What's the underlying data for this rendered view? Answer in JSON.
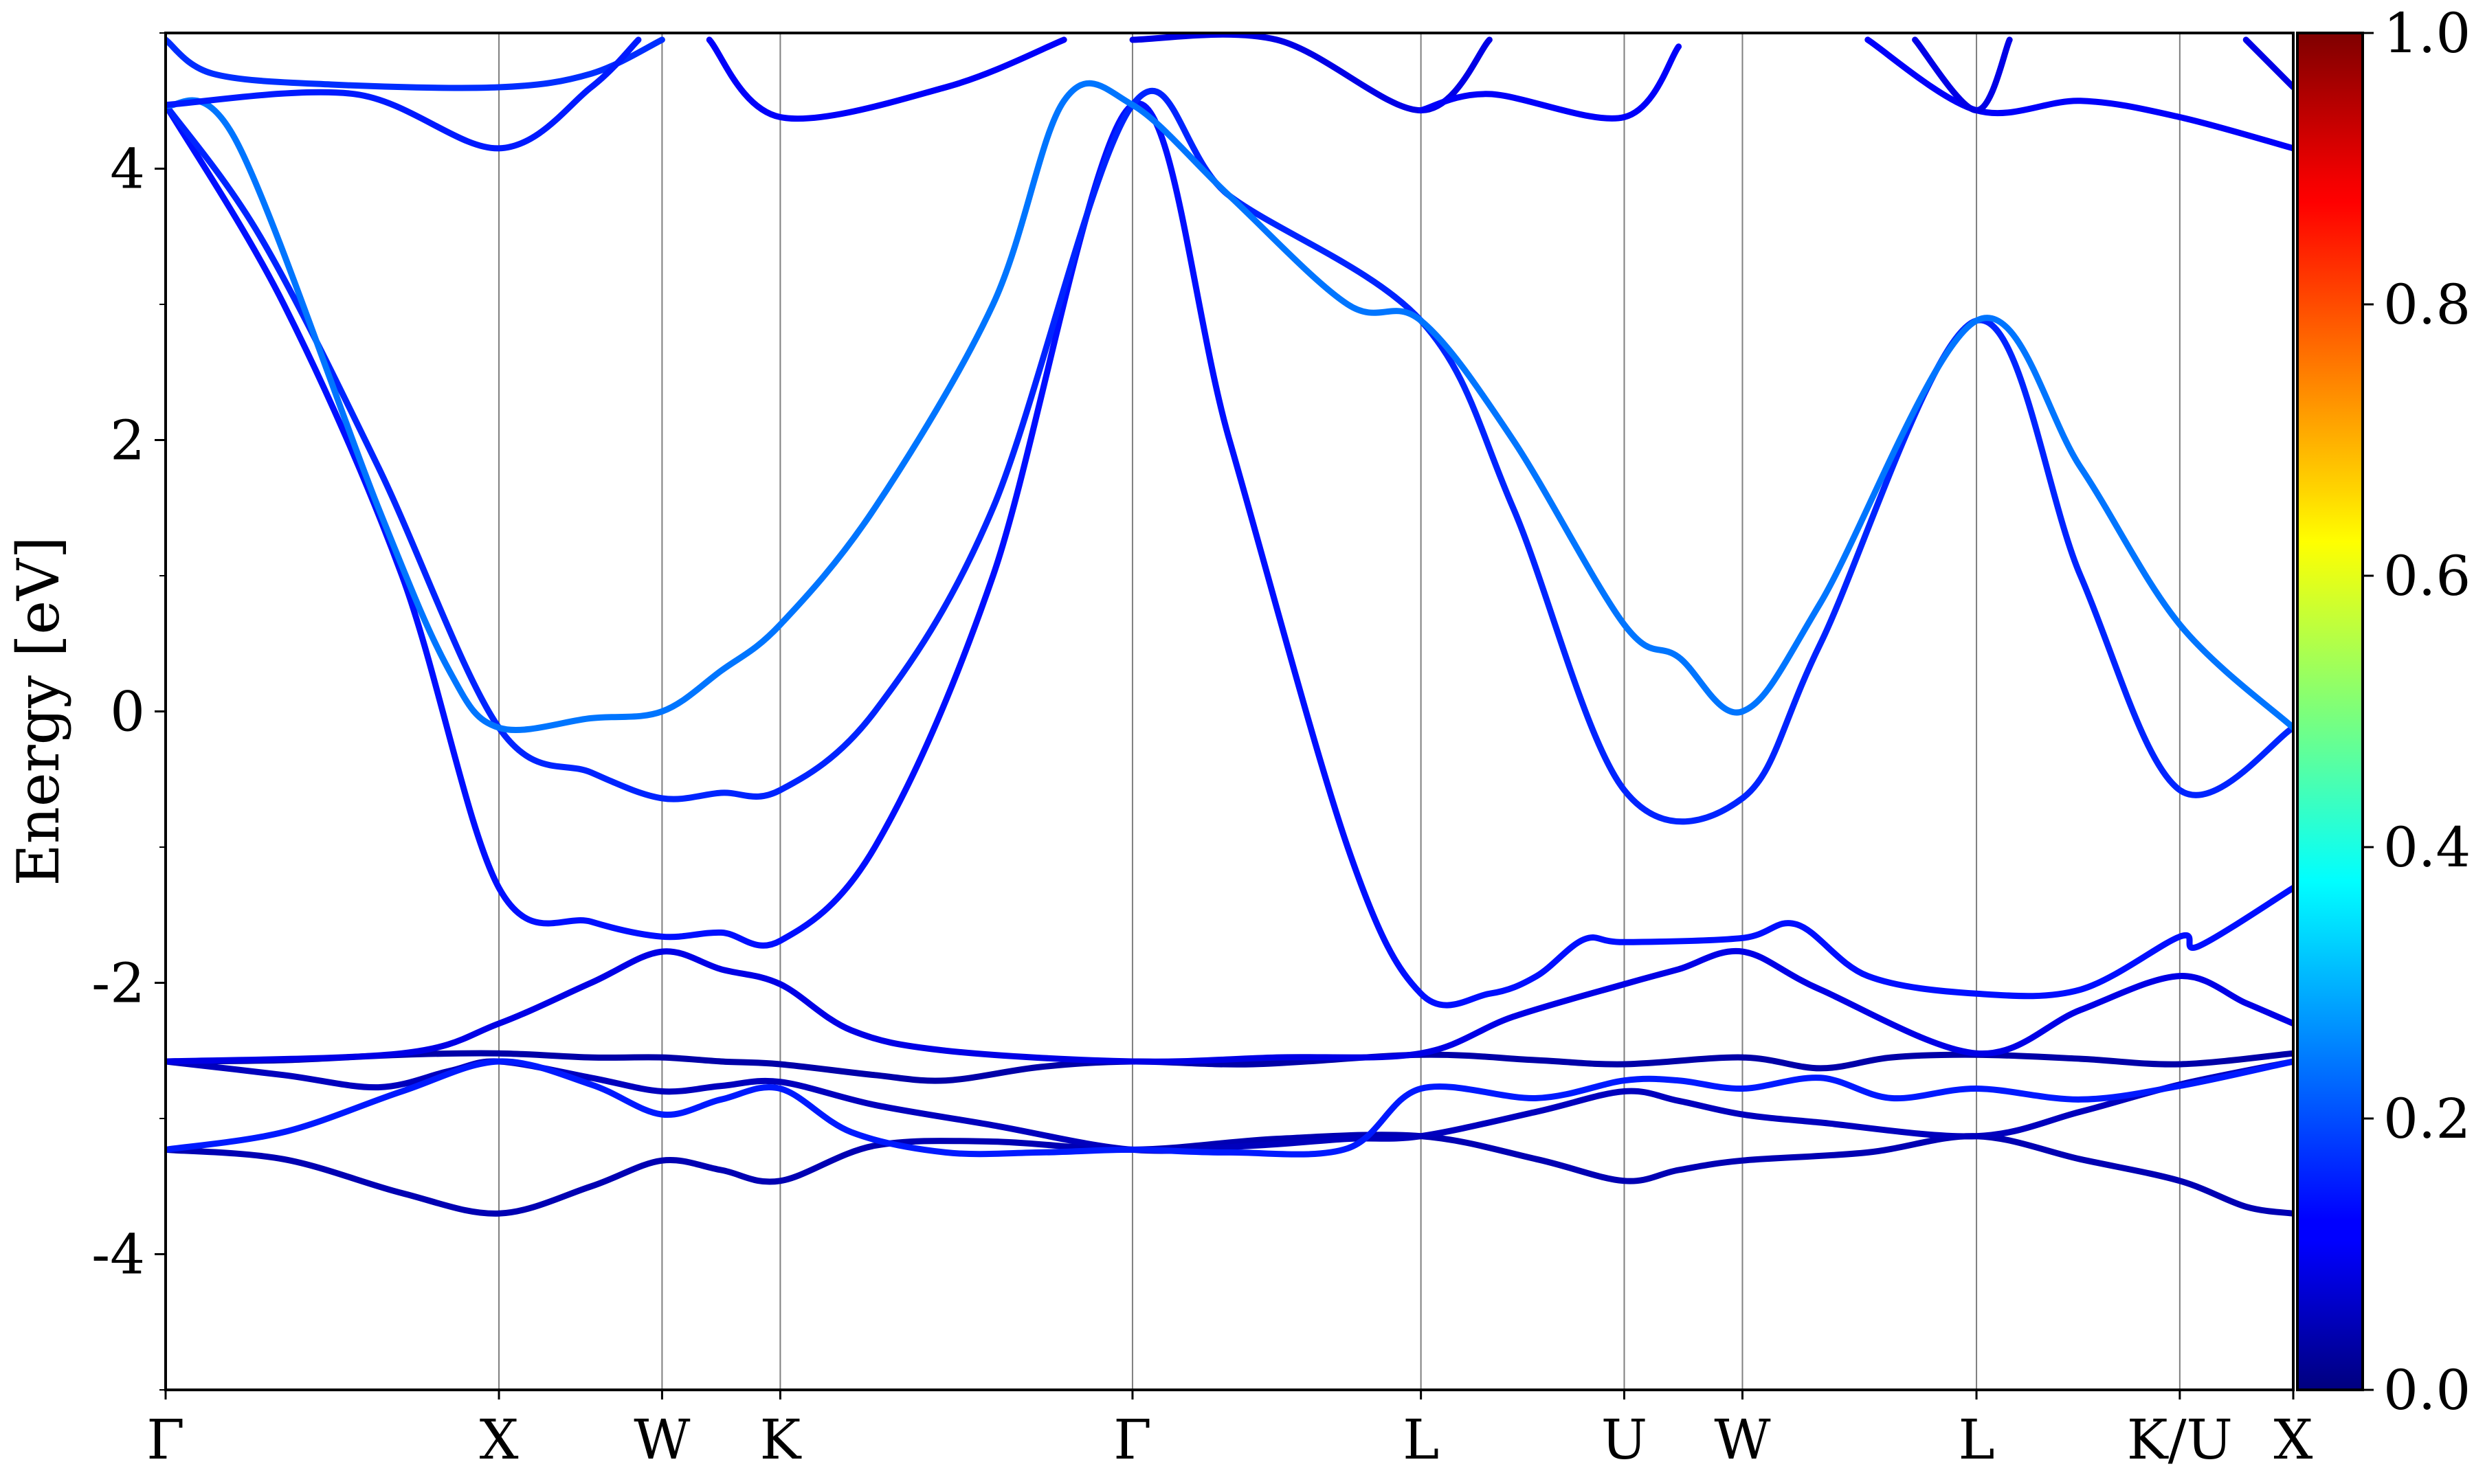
{
  "chart_data": {
    "type": "line",
    "title": "",
    "xlabel": "",
    "ylabel": "Energy [eV]",
    "ylim": [
      -5,
      5
    ],
    "y_ticks": [
      {
        "value": 4,
        "label": "4"
      },
      {
        "value": 2,
        "label": "2"
      },
      {
        "value": 0,
        "label": "0"
      },
      {
        "value": -2,
        "label": "-2"
      },
      {
        "value": -4,
        "label": "-4"
      }
    ],
    "y_minor_ticks": [
      5,
      3,
      1,
      -1,
      -3,
      -5
    ],
    "xlim": [
      0,
      9.0
    ],
    "kpoints": [
      {
        "label": "Γ",
        "x": 0.0
      },
      {
        "label": "X",
        "x": 1.41
      },
      {
        "label": "W",
        "x": 2.1
      },
      {
        "label": "K",
        "x": 2.6
      },
      {
        "label": "Γ",
        "x": 4.09
      },
      {
        "label": "L",
        "x": 5.31
      },
      {
        "label": "U",
        "x": 6.17
      },
      {
        "label": "W",
        "x": 6.67
      },
      {
        "label": "L",
        "x": 7.66
      },
      {
        "label": "K/U",
        "x": 8.52
      },
      {
        "label": "X",
        "x": 9.0
      }
    ],
    "colorbar": {
      "min": 0.0,
      "max": 1.0,
      "colormap": "jet",
      "ticks": [
        {
          "value": 0.0,
          "label": "0.0"
        },
        {
          "value": 0.2,
          "label": "0.2"
        },
        {
          "value": 0.4,
          "label": "0.4"
        },
        {
          "value": 0.6,
          "label": "0.6"
        },
        {
          "value": 0.8,
          "label": "0.8"
        },
        {
          "value": 1.0,
          "label": "1.0"
        }
      ]
    },
    "grid": "vertical lines at k-points",
    "series": [
      {
        "weight": 0.05,
        "points": [
          [
            0,
            -3.23
          ],
          [
            0.5,
            -3.3
          ],
          [
            1.0,
            -3.55
          ],
          [
            1.41,
            -3.7
          ],
          [
            1.8,
            -3.5
          ],
          [
            2.1,
            -3.31
          ],
          [
            2.35,
            -3.38
          ],
          [
            2.6,
            -3.46
          ],
          [
            3.0,
            -3.2
          ],
          [
            3.5,
            -3.17
          ],
          [
            4.09,
            -3.23
          ],
          [
            4.7,
            -3.15
          ],
          [
            5.31,
            -3.13
          ],
          [
            5.8,
            -3.3
          ],
          [
            6.17,
            -3.46
          ],
          [
            6.4,
            -3.38
          ],
          [
            6.67,
            -3.31
          ],
          [
            7.2,
            -3.25
          ],
          [
            7.66,
            -3.13
          ],
          [
            8.1,
            -3.3
          ],
          [
            8.52,
            -3.46
          ],
          [
            8.8,
            -3.65
          ],
          [
            9.0,
            -3.7
          ]
        ]
      },
      {
        "weight": 0.04,
        "points": [
          [
            0,
            -2.58
          ],
          [
            0.5,
            -2.57
          ],
          [
            1.0,
            -2.53
          ],
          [
            1.41,
            -2.52
          ],
          [
            1.8,
            -2.55
          ],
          [
            2.1,
            -2.55
          ],
          [
            2.35,
            -2.58
          ],
          [
            2.6,
            -2.6
          ],
          [
            3.0,
            -2.68
          ],
          [
            3.3,
            -2.72
          ],
          [
            3.7,
            -2.62
          ],
          [
            4.09,
            -2.58
          ],
          [
            4.6,
            -2.6
          ],
          [
            5.31,
            -2.53
          ],
          [
            5.8,
            -2.57
          ],
          [
            6.17,
            -2.6
          ],
          [
            6.67,
            -2.55
          ],
          [
            7.0,
            -2.63
          ],
          [
            7.3,
            -2.55
          ],
          [
            7.66,
            -2.53
          ],
          [
            8.1,
            -2.56
          ],
          [
            8.52,
            -2.6
          ],
          [
            9.0,
            -2.52
          ]
        ]
      },
      {
        "weight": 0.06,
        "points": [
          [
            0,
            -2.58
          ],
          [
            0.5,
            -2.68
          ],
          [
            0.9,
            -2.77
          ],
          [
            1.2,
            -2.65
          ],
          [
            1.41,
            -2.58
          ],
          [
            1.8,
            -2.7
          ],
          [
            2.1,
            -2.8
          ],
          [
            2.35,
            -2.76
          ],
          [
            2.6,
            -2.73
          ],
          [
            3.0,
            -2.9
          ],
          [
            3.5,
            -3.05
          ],
          [
            4.09,
            -3.23
          ],
          [
            4.6,
            -3.2
          ],
          [
            5.0,
            -3.15
          ],
          [
            5.31,
            -3.13
          ],
          [
            5.8,
            -2.95
          ],
          [
            6.17,
            -2.8
          ],
          [
            6.4,
            -2.87
          ],
          [
            6.67,
            -2.97
          ],
          [
            7.0,
            -3.03
          ],
          [
            7.66,
            -3.13
          ],
          [
            8.1,
            -2.95
          ],
          [
            8.52,
            -2.75
          ],
          [
            9.0,
            -2.58
          ]
        ]
      },
      {
        "weight": 0.15,
        "points": [
          [
            0,
            -3.23
          ],
          [
            0.5,
            -3.1
          ],
          [
            1.0,
            -2.8
          ],
          [
            1.41,
            -2.58
          ],
          [
            1.8,
            -2.75
          ],
          [
            2.1,
            -2.97
          ],
          [
            2.35,
            -2.86
          ],
          [
            2.6,
            -2.78
          ],
          [
            2.9,
            -3.1
          ],
          [
            3.3,
            -3.25
          ],
          [
            3.7,
            -3.25
          ],
          [
            4.09,
            -3.23
          ],
          [
            4.5,
            -3.25
          ],
          [
            5.0,
            -3.22
          ],
          [
            5.31,
            -2.78
          ],
          [
            5.8,
            -2.85
          ],
          [
            6.17,
            -2.72
          ],
          [
            6.4,
            -2.72
          ],
          [
            6.67,
            -2.78
          ],
          [
            7.0,
            -2.7
          ],
          [
            7.3,
            -2.85
          ],
          [
            7.66,
            -2.78
          ],
          [
            8.1,
            -2.86
          ],
          [
            8.52,
            -2.76
          ],
          [
            9.0,
            -2.58
          ]
        ]
      },
      {
        "weight": 0.1,
        "points": [
          [
            0,
            -2.58
          ],
          [
            1.0,
            -2.52
          ],
          [
            1.41,
            -2.3
          ],
          [
            1.8,
            -2.0
          ],
          [
            2.1,
            -1.77
          ],
          [
            2.35,
            -1.9
          ],
          [
            2.6,
            -2.01
          ],
          [
            2.9,
            -2.35
          ],
          [
            3.3,
            -2.5
          ],
          [
            4.09,
            -2.58
          ],
          [
            4.7,
            -2.55
          ],
          [
            5.31,
            -2.52
          ],
          [
            5.7,
            -2.25
          ],
          [
            6.17,
            -2.01
          ],
          [
            6.4,
            -1.9
          ],
          [
            6.67,
            -1.77
          ],
          [
            7.0,
            -2.05
          ],
          [
            7.66,
            -2.52
          ],
          [
            8.1,
            -2.2
          ],
          [
            8.52,
            -1.95
          ],
          [
            8.8,
            -2.15
          ],
          [
            9.0,
            -2.3
          ]
        ]
      },
      {
        "weight": 0.14,
        "points": [
          [
            0,
            4.47
          ],
          [
            0.5,
            3.0
          ],
          [
            1.0,
            1.0
          ],
          [
            1.41,
            -1.3
          ],
          [
            1.8,
            -1.55
          ],
          [
            2.1,
            -1.66
          ],
          [
            2.35,
            -1.63
          ],
          [
            2.6,
            -1.69
          ],
          [
            3.0,
            -1.0
          ],
          [
            3.5,
            1.0
          ],
          [
            4.09,
            4.47
          ],
          [
            4.5,
            2.0
          ],
          [
            5.0,
            -1.0
          ],
          [
            5.31,
            -2.08
          ],
          [
            5.6,
            -2.08
          ],
          [
            5.8,
            -1.95
          ],
          [
            6.0,
            -1.68
          ],
          [
            6.17,
            -1.7
          ],
          [
            6.67,
            -1.67
          ],
          [
            6.9,
            -1.57
          ],
          [
            7.2,
            -1.95
          ],
          [
            7.66,
            -2.08
          ],
          [
            8.1,
            -2.05
          ],
          [
            8.52,
            -1.66
          ],
          [
            8.6,
            -1.73
          ],
          [
            9.0,
            -1.3
          ]
        ]
      },
      {
        "weight": 0.16,
        "points": [
          [
            0,
            4.47
          ],
          [
            0.4,
            3.5
          ],
          [
            0.9,
            1.8
          ],
          [
            1.41,
            -0.12
          ],
          [
            1.8,
            -0.45
          ],
          [
            2.1,
            -0.64
          ],
          [
            2.35,
            -0.6
          ],
          [
            2.6,
            -0.58
          ],
          [
            3.0,
            0.0
          ],
          [
            3.5,
            1.5
          ],
          [
            4.09,
            4.47
          ],
          [
            4.5,
            3.8
          ],
          [
            5.31,
            2.88
          ],
          [
            5.7,
            1.5
          ],
          [
            6.17,
            -0.58
          ],
          [
            6.67,
            -0.64
          ],
          [
            7.0,
            0.5
          ],
          [
            7.66,
            2.88
          ],
          [
            8.1,
            1.0
          ],
          [
            8.52,
            -0.58
          ],
          [
            9.0,
            -0.12
          ]
        ]
      },
      {
        "weight": 0.24,
        "points": [
          [
            0,
            4.47
          ],
          [
            0.3,
            4.2
          ],
          [
            0.9,
            1.5
          ],
          [
            1.2,
            0.3
          ],
          [
            1.41,
            -0.12
          ],
          [
            1.8,
            -0.05
          ],
          [
            2.1,
            0.0
          ],
          [
            2.35,
            0.3
          ],
          [
            2.6,
            0.64
          ],
          [
            3.0,
            1.5
          ],
          [
            3.5,
            3.0
          ],
          [
            3.8,
            4.5
          ],
          [
            4.09,
            4.47
          ],
          [
            4.5,
            3.8
          ],
          [
            5.0,
            3.0
          ],
          [
            5.31,
            2.88
          ],
          [
            5.7,
            2.0
          ],
          [
            6.17,
            0.64
          ],
          [
            6.4,
            0.4
          ],
          [
            6.67,
            0.0
          ],
          [
            7.0,
            0.8
          ],
          [
            7.66,
            2.88
          ],
          [
            8.1,
            1.8
          ],
          [
            8.52,
            0.64
          ],
          [
            9.0,
            -0.12
          ]
        ]
      },
      {
        "weight": 0.17,
        "points": [
          [
            0,
            4.95
          ],
          [
            0.2,
            4.7
          ],
          [
            0.7,
            4.62
          ],
          [
            1.41,
            4.6
          ],
          [
            1.8,
            4.7
          ],
          [
            2.1,
            4.95
          ]
        ]
      },
      {
        "weight": 0.15,
        "points": [
          [
            0,
            4.47
          ],
          [
            0.8,
            4.55
          ],
          [
            1.41,
            4.15
          ],
          [
            1.8,
            4.6
          ],
          [
            2.0,
            4.95
          ]
        ]
      },
      {
        "weight": 0.12,
        "points": [
          [
            2.3,
            4.95
          ],
          [
            2.6,
            4.38
          ],
          [
            3.3,
            4.6
          ],
          [
            3.8,
            4.95
          ]
        ]
      },
      {
        "weight": 0.1,
        "points": [
          [
            4.09,
            4.95
          ],
          [
            4.7,
            4.95
          ],
          [
            5.31,
            4.43
          ],
          [
            5.6,
            4.95
          ]
        ]
      },
      {
        "weight": 0.12,
        "points": [
          [
            5.31,
            4.43
          ],
          [
            5.6,
            4.55
          ],
          [
            6.17,
            4.38
          ],
          [
            6.4,
            4.9
          ]
        ]
      },
      {
        "weight": 0.12,
        "points": [
          [
            7.2,
            4.95
          ],
          [
            7.66,
            4.43
          ],
          [
            8.1,
            4.5
          ],
          [
            8.52,
            4.38
          ],
          [
            9.0,
            4.15
          ]
        ]
      },
      {
        "weight": 0.1,
        "points": [
          [
            7.4,
            4.95
          ],
          [
            7.66,
            4.43
          ],
          [
            7.8,
            4.95
          ]
        ]
      },
      {
        "weight": 0.1,
        "points": [
          [
            8.8,
            4.95
          ],
          [
            9.0,
            4.6
          ]
        ]
      }
    ]
  }
}
